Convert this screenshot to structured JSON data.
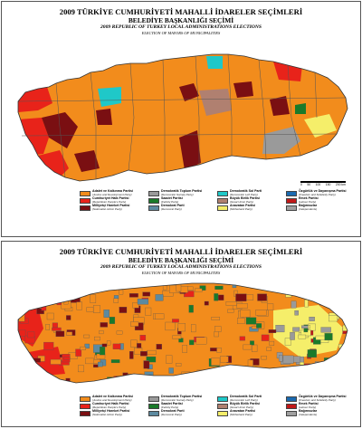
{
  "title": "2009 TÜRKİYE CUMHURİYETİ MAHALLİ İDARELER SEÇİMLERİ",
  "subtitle": "BELEDİYE BAŞKANLIĞI SEÇİMİ",
  "title_en": "2009 REPUBLIC OF TURKEY LOCAL ADMINISTRATIONS ELECTIONS",
  "subtitle_en": "ELECTION OF MAYORS OF MUNICIPALITIES",
  "scale_labels": [
    "0",
    "50",
    "100",
    "150",
    "200 km"
  ],
  "map_colors": {
    "akp": "#f28c1c",
    "chp": "#e8231a",
    "mhp": "#7a0f12",
    "dtp": "#9a9a9a",
    "dsp": "#1fc8c8",
    "sp": "#1a7a2a",
    "dp": "#5c8aa0",
    "bbp": "#b08070",
    "anavatan": "#f5ee6a",
    "ozgurluk": "#1a6ab0",
    "emek": "#c01818",
    "bagimsiz": "#a0a0a0",
    "sea": "#ffffff",
    "border": "#555555"
  },
  "legend": [
    {
      "name": "Adalet ve Kalkınma Partisi",
      "en": "(Justice and Development Party)",
      "color": "#f28c1c"
    },
    {
      "name": "Demokratik Toplum Partisi",
      "en": "(Democratic Society Party)",
      "color": "#9a9a9a"
    },
    {
      "name": "Demokratik Sol Parti",
      "en": "(Democratic Left Party)",
      "color": "#1fc8c8"
    },
    {
      "name": "Özgürlük ve Dayanışma Partisi",
      "en": "(Freedom and Solidarity Party)",
      "color": "#1a6ab0"
    },
    {
      "name": "Cumhuriyet Halk Partisi",
      "en": "(Republican People's Party)",
      "color": "#e8231a"
    },
    {
      "name": "Saadet Partisi",
      "en": "(Felicity Party)",
      "color": "#1a7a2a"
    },
    {
      "name": "Büyük Birlik Partisi",
      "en": "(Great Union Party)",
      "color": "#b08070"
    },
    {
      "name": "Emek Partisi",
      "en": "(Labour Party)",
      "color": "#c01818"
    },
    {
      "name": "Milliyetçi Hareket Partisi",
      "en": "(Nationalist Action Party)",
      "color": "#7a0f12"
    },
    {
      "name": "Demokrat Parti",
      "en": "(Democrat Party)",
      "color": "#5c8aa0"
    },
    {
      "name": "Anavatan Partisi",
      "en": "(Motherland Party)",
      "color": "#f5ee6a"
    },
    {
      "name": "Bağımsızlar",
      "en": "(Independents)",
      "color": "#a0a0a0"
    }
  ]
}
